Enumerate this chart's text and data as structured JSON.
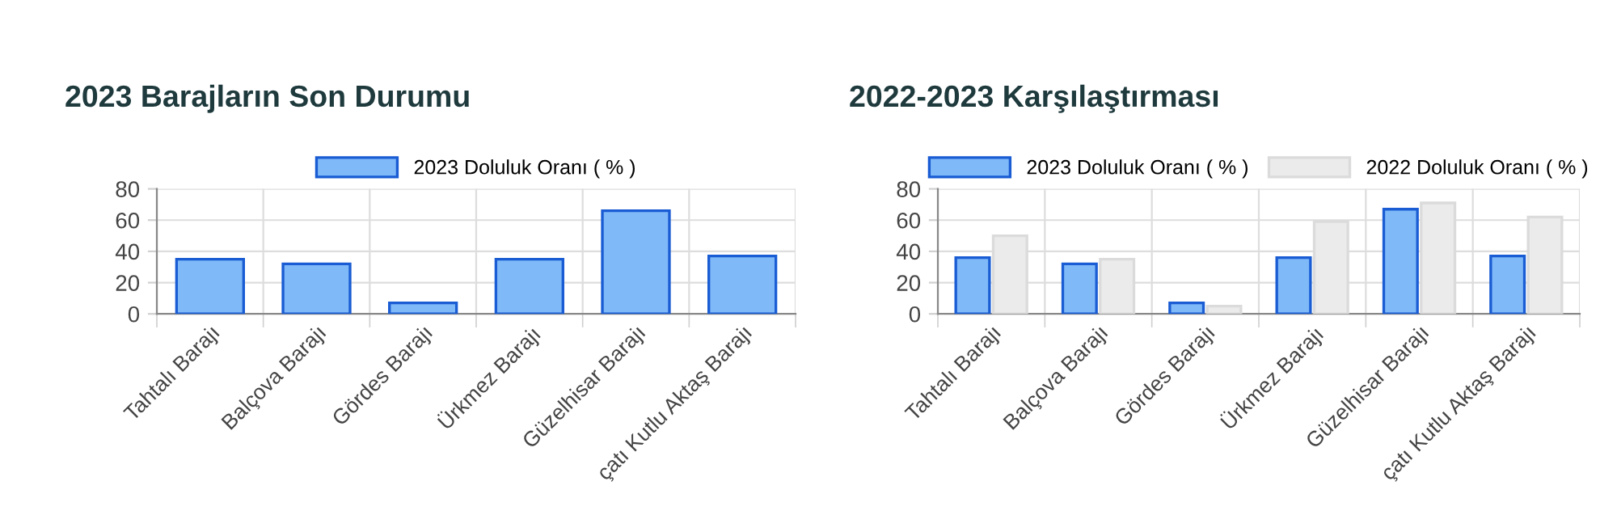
{
  "chart_data": [
    {
      "type": "bar",
      "title": "2023 Barajların Son Durumu",
      "categories": [
        "Tahtalı Barajı",
        "Balçova Barajı",
        "Gördes Barajı",
        "Ürkmez Barajı",
        "Güzelhisar Barajı",
        "çatı Kutlu Aktaş Barajı"
      ],
      "series": [
        {
          "name": "2023 Doluluk Oranı ( % )",
          "color": "#7fb9f8",
          "values": [
            35,
            32,
            7,
            35,
            66,
            37
          ]
        }
      ],
      "ylim": [
        0,
        80
      ],
      "yticks": [
        0,
        20,
        40,
        60,
        80
      ],
      "grid": true,
      "legend": "top"
    },
    {
      "type": "bar",
      "title": "2022-2023 Karşılaştırması",
      "categories": [
        "Tahtalı Barajı",
        "Balçova Barajı",
        "Gördes Barajı",
        "Ürkmez Barajı",
        "Güzelhisar Barajı",
        "çatı Kutlu Aktaş Barajı"
      ],
      "series": [
        {
          "name": "2023 Doluluk Oranı ( % )",
          "color": "#7fb9f8",
          "values": [
            36,
            32,
            7,
            36,
            67,
            37
          ]
        },
        {
          "name": "2022 Doluluk Oranı ( % )",
          "color": "#ebebeb",
          "values": [
            50,
            35,
            5,
            59,
            71,
            62
          ]
        }
      ],
      "ylim": [
        0,
        80
      ],
      "yticks": [
        0,
        20,
        40,
        60,
        80
      ],
      "grid": true,
      "legend": "top"
    }
  ]
}
